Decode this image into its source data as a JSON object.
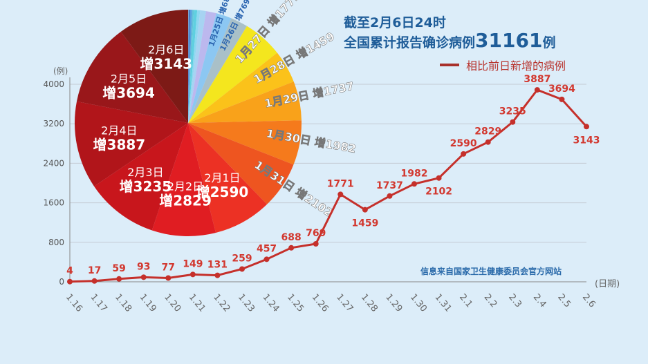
{
  "title_line1": "截至2月6日24时",
  "title_line2_prefix": "全国累计报告确诊病例",
  "title_total": "31161",
  "title_line2_suffix": "例",
  "legend": "相比前日新增的病例",
  "source": "信息来自国家卫生健康委员会官方网站",
  "colors": {
    "line": "#c5302b",
    "label": "#d2382f",
    "background": "#dcedf9"
  },
  "chart_data": [
    {
      "type": "line",
      "title": "相比前日新增的病例",
      "xlabel": "(日期)",
      "ylabel": "(例)",
      "ylim": [
        0,
        4000
      ],
      "yticks": [
        0,
        800,
        1600,
        2400,
        3200,
        4000
      ],
      "grid": true,
      "x": [
        "1.16",
        "1.17",
        "1.18",
        "1.19",
        "1.20",
        "1.21",
        "1.22",
        "1.23",
        "1.24",
        "1.25",
        "1.26",
        "1.27",
        "1.28",
        "1.29",
        "1.30",
        "1.31",
        "2.1",
        "2.2",
        "2.3",
        "2.4",
        "2.5",
        "2.6"
      ],
      "values": [
        4,
        17,
        59,
        93,
        77,
        149,
        131,
        259,
        457,
        688,
        769,
        1771,
        1459,
        1737,
        1982,
        2102,
        2590,
        2829,
        3235,
        3887,
        3694,
        3143
      ]
    },
    {
      "type": "pie",
      "slices": [
        {
          "date": "1月16日",
          "value": 4,
          "color": "#6f8fa8"
        },
        {
          "date": "1月17日",
          "value": 17,
          "color": "#8fb3c9"
        },
        {
          "date": "1月18日",
          "value": 59,
          "color": "#3a6fc0"
        },
        {
          "date": "1月19日",
          "value": 93,
          "color": "#5aa0e0"
        },
        {
          "date": "1月20日",
          "value": 77,
          "color": "#62c3d9"
        },
        {
          "date": "1月21日",
          "value": 149,
          "color": "#5fd0e0"
        },
        {
          "date": "1月22日",
          "value": 131,
          "color": "#8ed8f0"
        },
        {
          "date": "1月23日",
          "value": 259,
          "color": "#a7d3f2"
        },
        {
          "date": "1月24日",
          "value": 457,
          "color": "#bcb8ee"
        },
        {
          "date": "1月25日",
          "value": 688,
          "color": "#8cc7f2",
          "label": "1月25日 增688例"
        },
        {
          "date": "1月26日",
          "value": 769,
          "color": "#a9c0c8",
          "label": "1月26日 增769例"
        },
        {
          "date": "1月27日",
          "value": 1771,
          "color": "#f4e61e",
          "label": "1月27日 增1771"
        },
        {
          "date": "1月28日",
          "value": 1459,
          "color": "#fbc21a",
          "label": "1月28日 增1459"
        },
        {
          "date": "1月29日",
          "value": 1737,
          "color": "#f9a21a",
          "label": "1月29日 增1737"
        },
        {
          "date": "1月30日",
          "value": 1982,
          "color": "#f57a1c",
          "label": "1月30日 增1982"
        },
        {
          "date": "1月31日",
          "value": 2102,
          "color": "#ee5520",
          "label": "1月31日 增2102"
        },
        {
          "date": "2月1日",
          "value": 2590,
          "color": "#ec3124",
          "label": "2月1日 增2590"
        },
        {
          "date": "2月2日",
          "value": 2829,
          "color": "#e01d22",
          "label": "2月2日 增2829"
        },
        {
          "date": "2月3日",
          "value": 3235,
          "color": "#c8161c",
          "label": "2月3日 增3235"
        },
        {
          "date": "2月4日",
          "value": 3887,
          "color": "#b1151a",
          "label": "2月4日 增3887"
        },
        {
          "date": "2月5日",
          "value": 3694,
          "color": "#99171a",
          "label": "2月5日 增3694"
        },
        {
          "date": "2月6日",
          "value": 3143,
          "color": "#7d1a16",
          "label": "2月6日 增3143"
        }
      ]
    }
  ]
}
